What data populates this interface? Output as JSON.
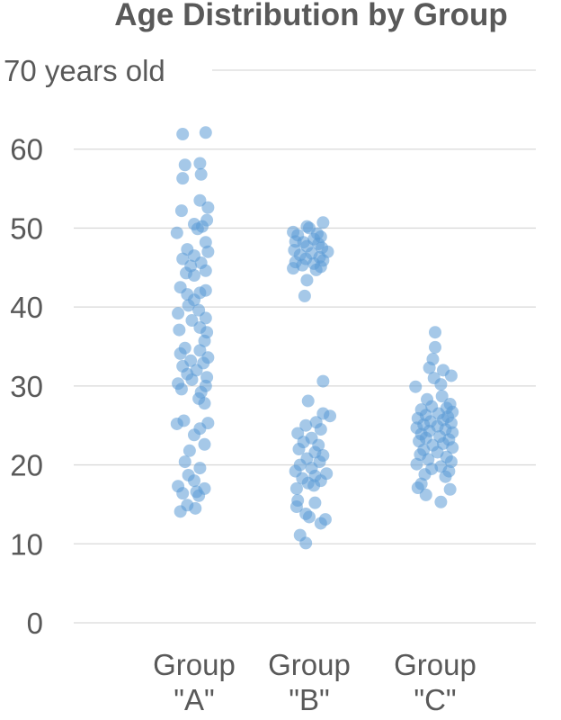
{
  "chart_data": {
    "type": "scatter",
    "title": "Age Distribution by Group",
    "xlabel": "",
    "ylabel": "",
    "ylim": [
      0,
      70
    ],
    "y_ticks": [
      0,
      10,
      20,
      30,
      40,
      50,
      60,
      70
    ],
    "y_tick_labels": [
      "0",
      "10",
      "20",
      "30",
      "40",
      "50",
      "60",
      "70 years old"
    ],
    "categories": [
      {
        "line1": "Group",
        "line2": "\"A\""
      },
      {
        "line1": "Group",
        "line2": "\"B\""
      },
      {
        "line1": "Group",
        "line2": "\"C\""
      }
    ],
    "grid": true,
    "legend": "none",
    "point_color": "#5b9bd5",
    "series": [
      {
        "values": [
          62.1,
          61.9,
          58.2,
          58.0,
          56.8,
          56.3,
          53.5,
          52.6,
          52.2,
          51.0,
          50.5,
          50.2,
          49.9,
          49.4,
          48.2,
          47.3,
          47.0,
          46.5,
          46.1,
          45.6,
          45.2,
          44.6,
          44.3,
          44.0,
          42.5,
          42.1,
          41.8,
          41.6,
          40.9,
          40.2,
          39.6,
          39.2,
          38.6,
          38.3,
          37.4,
          37.1,
          36.8,
          35.7,
          34.8,
          34.5,
          34.1,
          33.6,
          33.2,
          32.9,
          32.5,
          32.0,
          31.5,
          31.1,
          30.8,
          30.3,
          30.0,
          29.6,
          29.2,
          28.4,
          27.8,
          25.6,
          25.3,
          25.2,
          24.6,
          23.8,
          22.6,
          21.8,
          20.4,
          19.6,
          18.7,
          18.0,
          17.3,
          17.0,
          16.6,
          16.4,
          16.1,
          14.9,
          14.5,
          14.1
        ],
        "offsets": [
          0.1,
          -0.1,
          0.05,
          -0.08,
          0.06,
          -0.1,
          0.05,
          0.12,
          -0.11,
          0.11,
          0.0,
          0.07,
          0.03,
          -0.15,
          0.1,
          -0.06,
          0.12,
          0.0,
          -0.1,
          0.06,
          -0.03,
          0.1,
          -0.07,
          0.0,
          -0.12,
          0.1,
          0.05,
          -0.06,
          0.0,
          -0.05,
          0.04,
          -0.14,
          0.1,
          -0.02,
          0.05,
          -0.13,
          0.11,
          0.09,
          -0.08,
          0.05,
          -0.12,
          0.12,
          -0.03,
          0.08,
          -0.1,
          0.02,
          -0.06,
          0.11,
          -0.02,
          -0.14,
          0.1,
          -0.11,
          0.06,
          0.04,
          0.09,
          -0.09,
          0.12,
          -0.15,
          0.05,
          0.0,
          0.09,
          -0.04,
          -0.08,
          0.05,
          -0.05,
          0.0,
          -0.14,
          0.09,
          0.02,
          -0.1,
          0.04,
          -0.06,
          0.01,
          -0.12
        ]
      },
      {
        "values": [
          50.7,
          50.2,
          50.0,
          49.5,
          49.3,
          49.1,
          48.9,
          48.6,
          48.3,
          48.2,
          48.0,
          47.7,
          47.5,
          47.2,
          47.0,
          46.8,
          46.6,
          46.3,
          46.1,
          45.9,
          45.7,
          45.5,
          45.3,
          45.1,
          44.9,
          44.7,
          43.4,
          41.4,
          30.6,
          28.1,
          26.5,
          26.2,
          25.4,
          25.0,
          24.5,
          24.0,
          23.4,
          22.9,
          22.5,
          22.0,
          21.6,
          21.2,
          20.8,
          20.4,
          20.0,
          19.6,
          19.2,
          18.9,
          18.6,
          18.3,
          18.0,
          17.7,
          17.4,
          17.0,
          15.5,
          15.2,
          14.7,
          13.8,
          13.4,
          13.1,
          12.6,
          11.1,
          10.1
        ],
        "offsets": [
          0.12,
          -0.02,
          0.0,
          -0.14,
          0.07,
          -0.1,
          0.1,
          0.04,
          -0.12,
          -0.05,
          0.08,
          -0.02,
          0.11,
          -0.13,
          0.16,
          0.02,
          -0.08,
          0.09,
          -0.03,
          0.12,
          -0.12,
          0.04,
          -0.06,
          0.1,
          -0.14,
          0.06,
          -0.02,
          -0.04,
          0.12,
          -0.01,
          0.12,
          0.18,
          0.06,
          -0.03,
          0.1,
          -0.1,
          0.02,
          -0.05,
          0.08,
          -0.09,
          0.05,
          0.12,
          -0.02,
          0.09,
          -0.08,
          0.02,
          -0.12,
          0.15,
          0.05,
          -0.06,
          0.1,
          -0.01,
          0.04,
          -0.11,
          -0.1,
          0.05,
          -0.11,
          -0.03,
          0.0,
          0.14,
          0.1,
          -0.08,
          -0.03
        ]
      },
      {
        "values": [
          36.8,
          34.9,
          33.4,
          32.3,
          32.0,
          31.3,
          31.0,
          30.2,
          29.9,
          28.7,
          28.3,
          27.7,
          27.4,
          27.2,
          27.0,
          26.7,
          26.5,
          26.3,
          26.1,
          25.9,
          25.7,
          25.5,
          25.3,
          25.1,
          24.9,
          24.7,
          24.5,
          24.3,
          24.1,
          23.9,
          23.6,
          23.4,
          23.2,
          23.0,
          22.7,
          22.5,
          22.2,
          21.9,
          21.6,
          21.3,
          21.0,
          20.7,
          20.4,
          20.1,
          19.8,
          19.5,
          19.2,
          18.8,
          18.5,
          17.6,
          17.1,
          16.9,
          16.2,
          15.3
        ],
        "offsets": [
          0.0,
          0.0,
          -0.02,
          -0.05,
          0.07,
          0.14,
          -0.01,
          0.05,
          -0.17,
          0.06,
          -0.07,
          0.13,
          -0.03,
          0.1,
          -0.12,
          0.15,
          0.03,
          -0.08,
          0.11,
          -0.15,
          0.07,
          -0.04,
          0.14,
          -0.1,
          0.02,
          -0.16,
          0.09,
          -0.05,
          0.15,
          -0.12,
          0.04,
          -0.08,
          0.12,
          -0.14,
          0.07,
          -0.02,
          0.15,
          -0.1,
          0.02,
          -0.13,
          0.1,
          -0.06,
          0.14,
          -0.16,
          0.05,
          -0.03,
          0.12,
          -0.09,
          0.09,
          -0.12,
          -0.15,
          0.13,
          -0.08,
          0.05
        ]
      }
    ]
  }
}
